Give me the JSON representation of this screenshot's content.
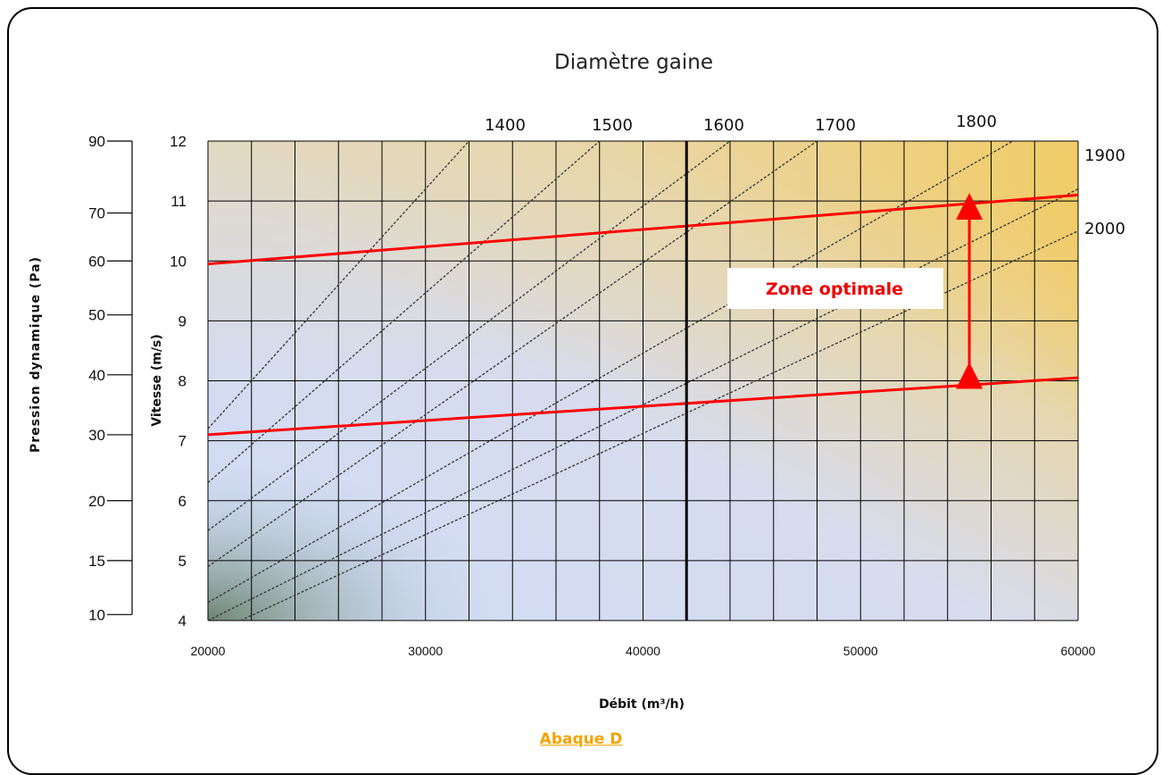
{
  "chart_data": {
    "type": "line",
    "title": "Diamètre gaine",
    "xlabel": "Débit (m³/h)",
    "ylabel": "Vitesse (m/s)",
    "ylabel_secondary": "Pression dynamique (Pa)",
    "xlim": [
      20000,
      60000
    ],
    "ylim": [
      4,
      12
    ],
    "x_ticks": [
      20000,
      30000,
      40000,
      50000,
      60000
    ],
    "y_ticks": [
      4,
      5,
      6,
      7,
      8,
      9,
      10,
      11,
      12
    ],
    "pressure_ticks": [
      {
        "label": "90",
        "v": 12
      },
      {
        "label": "70",
        "v": 10.8
      },
      {
        "label": "60",
        "v": 10
      },
      {
        "label": "50",
        "v": 9.1
      },
      {
        "label": "40",
        "v": 8.1
      },
      {
        "label": "30",
        "v": 7.1
      },
      {
        "label": "20",
        "v": 6.0
      },
      {
        "label": "15",
        "v": 5.0
      },
      {
        "label": "10",
        "v": 4.1
      }
    ],
    "grid": true,
    "diameter_labels": [
      "1400",
      "1500",
      "1600",
      "1700",
      "1800",
      "1900",
      "2000"
    ],
    "series": [
      {
        "name": "1400",
        "x": [
          20000,
          32000
        ],
        "y": [
          7.2,
          12
        ]
      },
      {
        "name": "1500",
        "x": [
          20000,
          38000
        ],
        "y": [
          6.3,
          12
        ]
      },
      {
        "name": "1600",
        "x": [
          20000,
          44000
        ],
        "y": [
          5.5,
          12
        ]
      },
      {
        "name": "1700",
        "x": [
          20000,
          48000
        ],
        "y": [
          4.9,
          12
        ]
      },
      {
        "name": "1800",
        "x": [
          20000,
          57000
        ],
        "y": [
          4.3,
          12
        ]
      },
      {
        "name": "1900",
        "x": [
          20000,
          60000
        ],
        "y": [
          4.0,
          11.2
        ]
      },
      {
        "name": "2000",
        "x": [
          21500,
          60000
        ],
        "y": [
          4.0,
          10.5
        ]
      }
    ],
    "zone_upper": {
      "x": [
        20000,
        60000
      ],
      "y": [
        9.95,
        11.1
      ]
    },
    "zone_lower": {
      "x": [
        20000,
        60000
      ],
      "y": [
        7.1,
        8.05
      ]
    },
    "vertical_marker_x": 42000,
    "annotation": {
      "text": "Zone optimale",
      "arrow_x": 55000,
      "from_y": 8.0,
      "to_y": 11.0
    },
    "colors": {
      "zone": "#ff0000",
      "curves": "#333333",
      "grid": "#000000",
      "caption": "#f2a500"
    }
  },
  "caption": "Abaque D"
}
